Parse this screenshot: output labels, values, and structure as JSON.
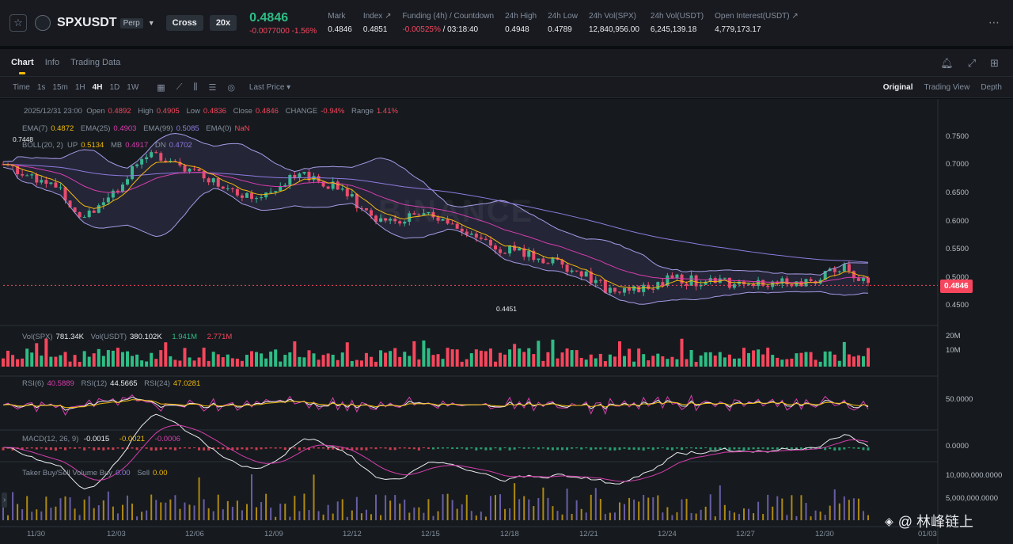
{
  "ticker": {
    "symbol": "SPXUSDT",
    "contract": "Perp",
    "margin_mode": "Cross",
    "leverage": "20x",
    "last_price": "0.4846",
    "change": "-0.0077000 -1.56%",
    "stats": [
      {
        "label": "Mark",
        "value": "0.4846"
      },
      {
        "label": "Index ↗",
        "value": "0.4851"
      },
      {
        "label": "Funding (4h) / Countdown",
        "value_neg": "-0.00525%",
        "value": " / 03:18:40"
      },
      {
        "label": "24h High",
        "value": "0.4948"
      },
      {
        "label": "24h Low",
        "value": "0.4789"
      },
      {
        "label": "24h Vol(SPX)",
        "value": "12,840,956.00"
      },
      {
        "label": "24h Vol(USDT)",
        "value": "6,245,139.18"
      },
      {
        "label": "Open Interest(USDT) ↗",
        "value": "4,779,173.17"
      }
    ]
  },
  "tabs": [
    "Chart",
    "Info",
    "Trading Data"
  ],
  "toolbar": {
    "intervals": [
      "Time",
      "1s",
      "15m",
      "1H",
      "4H",
      "1D",
      "1W"
    ],
    "active_interval": "4H",
    "price_type": "Last Price",
    "views": [
      "Original",
      "Trading View",
      "Depth"
    ]
  },
  "legend": {
    "ohlc": {
      "date": "2025/12/31 23:00",
      "open_l": "Open",
      "open": "0.4892",
      "high_l": "High",
      "high": "0.4905",
      "low_l": "Low",
      "low": "0.4836",
      "close_l": "Close",
      "close": "0.4846",
      "change_l": "CHANGE",
      "change": "-0.94%",
      "range_l": "Range",
      "range": "1.41%"
    },
    "ema": {
      "l7": "EMA(7)",
      "v7": "0.4872",
      "l25": "EMA(25)",
      "v25": "0.4903",
      "l99": "EMA(99)",
      "v99": "0.5085",
      "l0": "EMA(0)",
      "v0": "NaN"
    },
    "boll": {
      "label": "BOLL(20, 2)",
      "up_l": "UP",
      "up": "0.5134",
      "mb_l": "MB",
      "mb": "0.4917",
      "dn_l": "DN",
      "dn": "0.4702"
    },
    "vol": {
      "l1": "Vol(SPX)",
      "v1": "781.34K",
      "l2": "Vol(USDT)",
      "v2": "380.102K",
      "v3": "1.941M",
      "v4": "2.771M"
    },
    "rsi": {
      "l6": "RSI(6)",
      "v6": "40.5889",
      "l12": "RSI(12)",
      "v12": "44.5665",
      "l24": "RSI(24)",
      "v24": "47.0281"
    },
    "macd": {
      "label": "MACD(12, 26, 9)",
      "v1": "-0.0015",
      "v2": "-0.0021",
      "v3": "-0.0006"
    },
    "taker": {
      "label": "Taker Buy/Sell Volume",
      "buy_l": "Buy",
      "buy": "0.00",
      "sell_l": "Sell",
      "sell": "0.00"
    }
  },
  "y_axis_price": [
    "0.7500",
    "0.7000",
    "0.6500",
    "0.6000",
    "0.5500",
    "0.5000",
    "0.4500"
  ],
  "current_price_tag": "0.4846",
  "high_marker": "0.7448",
  "low_marker": "0.4451",
  "y_axis_vol": [
    "20M",
    "10M"
  ],
  "y_axis_rsi": "50.0000",
  "y_axis_macd": "0.0000",
  "y_axis_taker": [
    "10,000,000.0000",
    "5,000,000.0000"
  ],
  "x_axis": [
    "11/30",
    "12/03",
    "12/06",
    "12/09",
    "12/12",
    "12/15",
    "12/18",
    "12/21",
    "12/24",
    "12/27",
    "12/30",
    "01/03"
  ],
  "watermark": "BINANCE",
  "credit": "@ 林峰链上",
  "colors": {
    "up": "#2ebd85",
    "down": "#f6465d",
    "ema7": "#f0b90b",
    "ema25": "#d63eae",
    "ema99": "#8d7be0",
    "boll": "#a79ae6"
  }
}
